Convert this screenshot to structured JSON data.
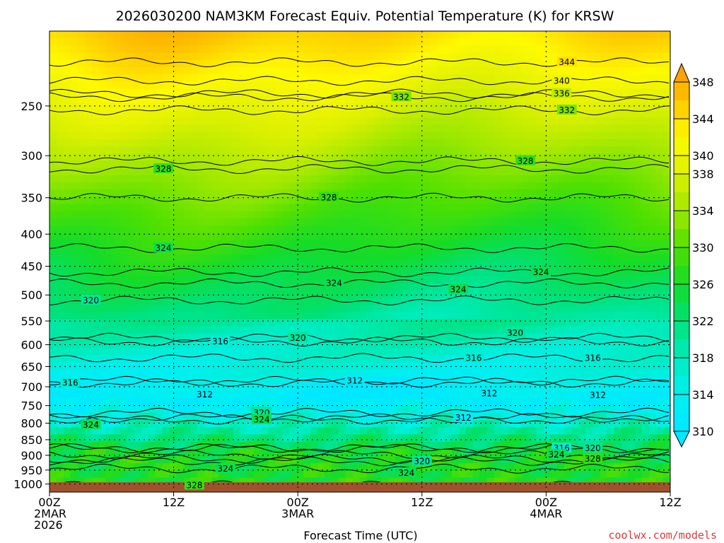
{
  "chart_data": {
    "type": "contour",
    "title": "2026030200 NAM3KM Forecast Equiv. Potential Temperature (K) for KRSW",
    "xlabel": "Forecast Time (UTC)",
    "ylabel": "",
    "credit": "coolwx.com/models",
    "x_ticks": [
      {
        "hours": 0,
        "lines": [
          "00Z",
          "2MAR",
          "2026"
        ]
      },
      {
        "hours": 12,
        "lines": [
          "12Z"
        ]
      },
      {
        "hours": 24,
        "lines": [
          "00Z",
          "3MAR"
        ]
      },
      {
        "hours": 36,
        "lines": [
          "12Z"
        ]
      },
      {
        "hours": 48,
        "lines": [
          "00Z",
          "4MAR"
        ]
      },
      {
        "hours": 60,
        "lines": [
          "12Z"
        ]
      }
    ],
    "xlim": [
      0,
      60
    ],
    "y_scale": "log-pressure",
    "ylim": [
      1030,
      190
    ],
    "y_ticks": [
      250,
      300,
      350,
      400,
      450,
      500,
      550,
      600,
      650,
      700,
      750,
      800,
      850,
      900,
      950,
      1000
    ],
    "colorbar": {
      "levels": [
        310,
        312,
        314,
        316,
        318,
        320,
        322,
        324,
        326,
        328,
        330,
        332,
        334,
        336,
        338,
        340,
        342,
        344,
        346,
        348
      ],
      "tick_labels": [
        310,
        314,
        318,
        322,
        326,
        330,
        334,
        338,
        340,
        344,
        348
      ],
      "extend": "both"
    },
    "contour_labels": [
      {
        "value": 344,
        "hours": 50.0,
        "pressure": 213
      },
      {
        "value": 340,
        "hours": 49.5,
        "pressure": 228
      },
      {
        "value": 336,
        "hours": 49.5,
        "pressure": 239
      },
      {
        "value": 332,
        "hours": 34.0,
        "pressure": 242
      },
      {
        "value": 332,
        "hours": 50.0,
        "pressure": 254
      },
      {
        "value": 328,
        "hours": 11.0,
        "pressure": 315
      },
      {
        "value": 328,
        "hours": 46.0,
        "pressure": 306
      },
      {
        "value": 328,
        "hours": 27.0,
        "pressure": 350
      },
      {
        "value": 324,
        "hours": 11.0,
        "pressure": 421
      },
      {
        "value": 324,
        "hours": 27.5,
        "pressure": 479
      },
      {
        "value": 324,
        "hours": 39.5,
        "pressure": 490
      },
      {
        "value": 324,
        "hours": 47.5,
        "pressure": 460
      },
      {
        "value": 320,
        "hours": 4.0,
        "pressure": 510
      },
      {
        "value": 320,
        "hours": 24.0,
        "pressure": 585
      },
      {
        "value": 320,
        "hours": 45.0,
        "pressure": 575
      },
      {
        "value": 316,
        "hours": 16.5,
        "pressure": 593
      },
      {
        "value": 316,
        "hours": 41.0,
        "pressure": 630
      },
      {
        "value": 316,
        "hours": 2.0,
        "pressure": 690
      },
      {
        "value": 316,
        "hours": 52.5,
        "pressure": 630
      },
      {
        "value": 312,
        "hours": 29.5,
        "pressure": 685
      },
      {
        "value": 312,
        "hours": 15.0,
        "pressure": 720
      },
      {
        "value": 312,
        "hours": 42.5,
        "pressure": 717
      },
      {
        "value": 312,
        "hours": 40.0,
        "pressure": 785
      },
      {
        "value": 312,
        "hours": 53.0,
        "pressure": 722
      },
      {
        "value": 320,
        "hours": 20.5,
        "pressure": 770
      },
      {
        "value": 324,
        "hours": 20.5,
        "pressure": 790
      },
      {
        "value": 324,
        "hours": 4.0,
        "pressure": 805
      },
      {
        "value": 316,
        "hours": 49.5,
        "pressure": 877
      },
      {
        "value": 320,
        "hours": 52.5,
        "pressure": 877
      },
      {
        "value": 324,
        "hours": 49.0,
        "pressure": 898
      },
      {
        "value": 328,
        "hours": 52.5,
        "pressure": 912
      },
      {
        "value": 320,
        "hours": 36.0,
        "pressure": 920
      },
      {
        "value": 324,
        "hours": 17.0,
        "pressure": 945
      },
      {
        "value": 324,
        "hours": 34.5,
        "pressure": 960
      },
      {
        "value": 328,
        "hours": 14.0,
        "pressure": 1005
      }
    ]
  }
}
